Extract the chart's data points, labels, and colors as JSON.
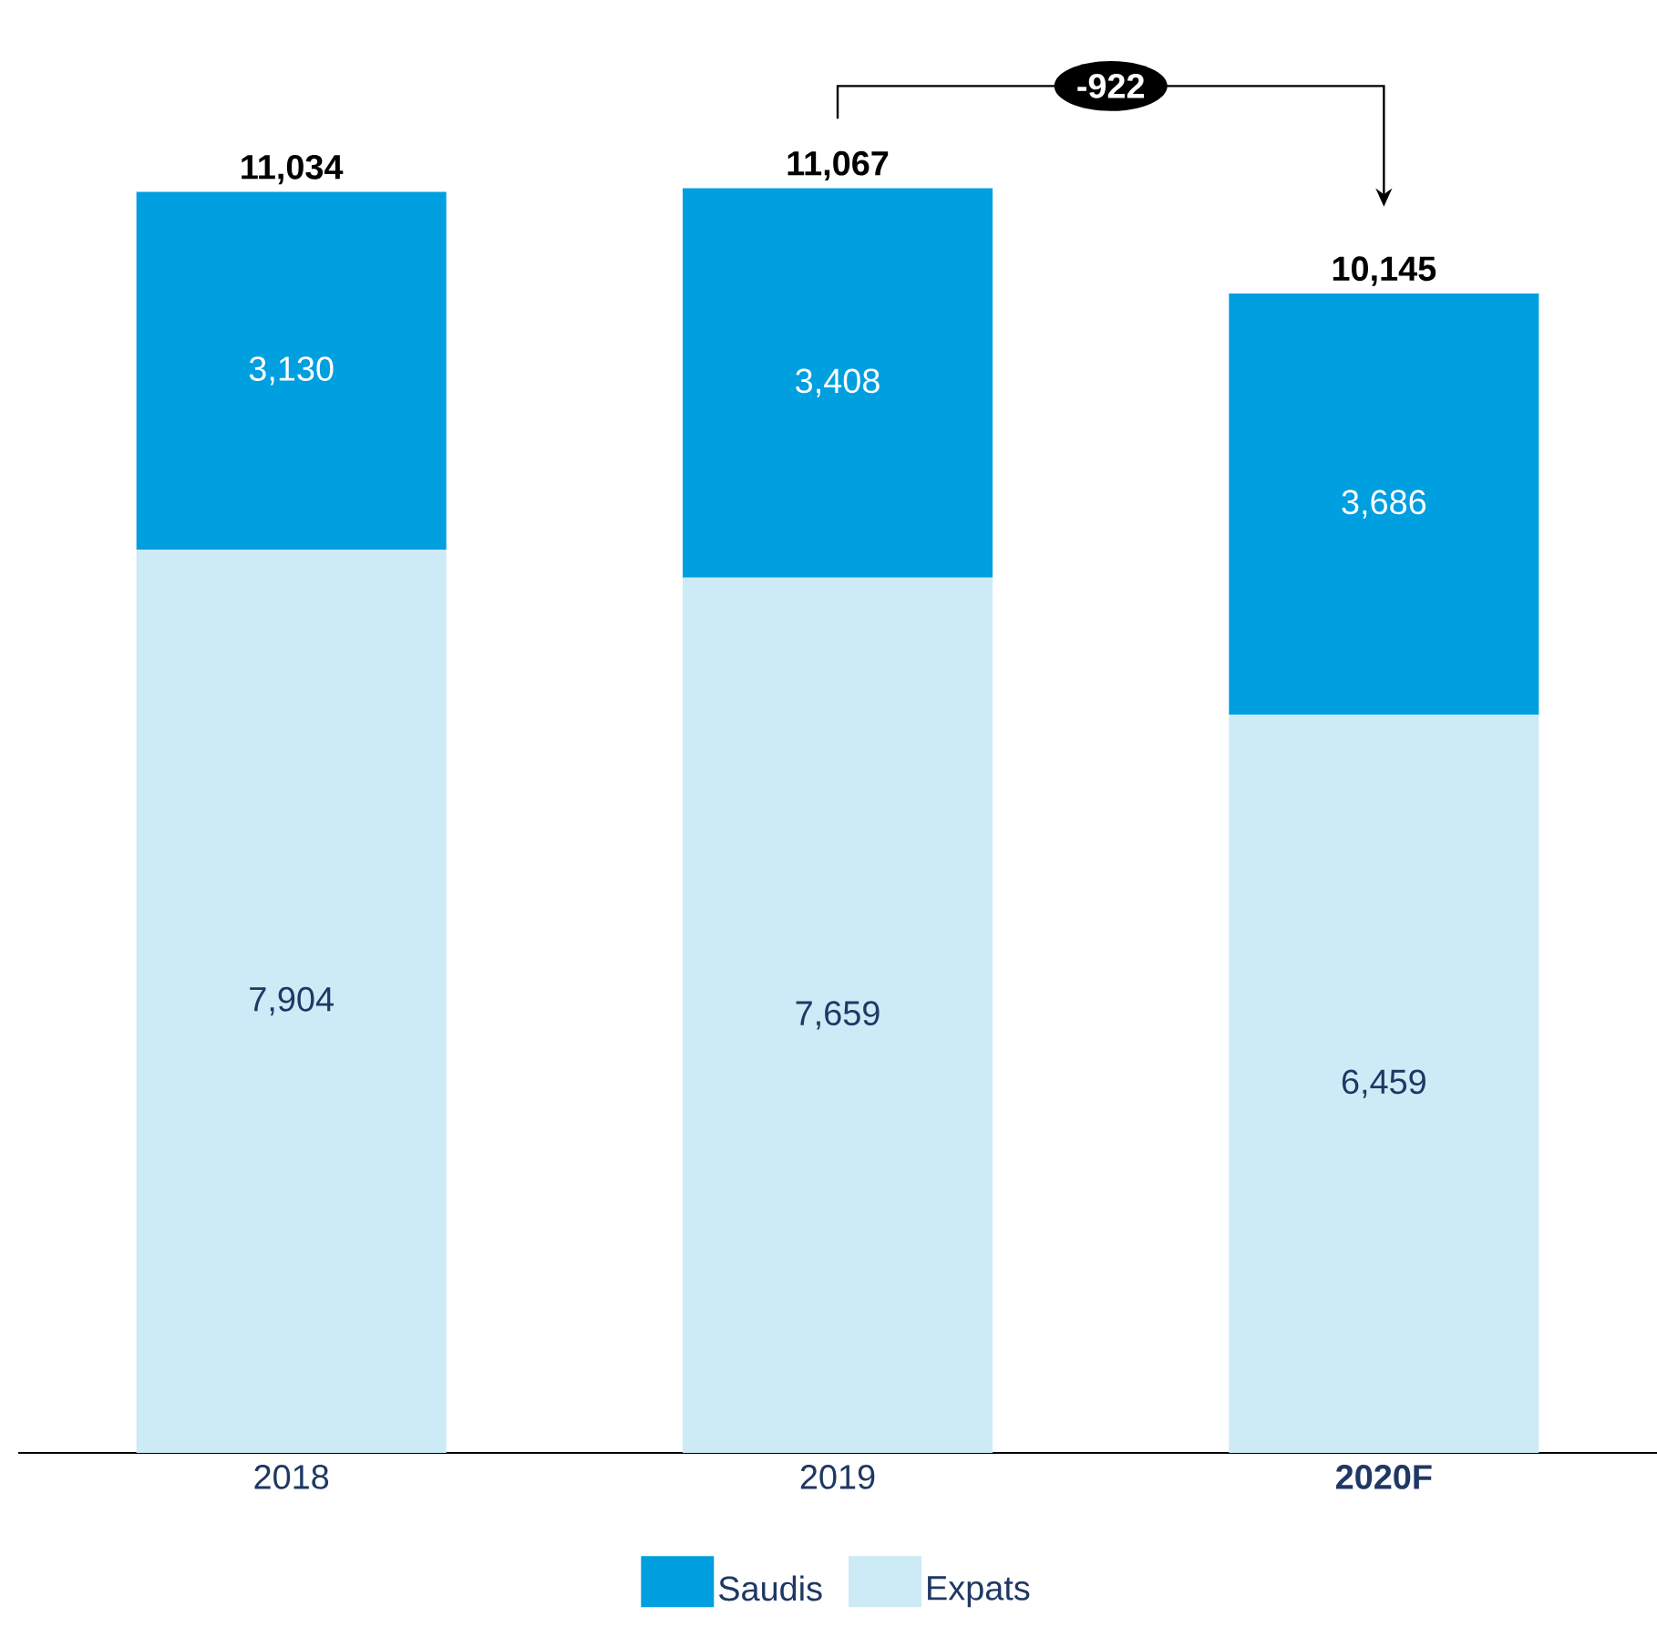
{
  "chart_data": {
    "type": "bar",
    "stacked": true,
    "categories": [
      "2018",
      "2019",
      "2020F"
    ],
    "series": [
      {
        "name": "Expats",
        "color": "#cdeaf7",
        "values": [
          7904,
          7659,
          6459
        ],
        "value_labels": [
          "7,904",
          "7,659",
          "6,459"
        ]
      },
      {
        "name": "Saudis",
        "color": "#009fdf",
        "values": [
          3130,
          3408,
          3686
        ],
        "value_labels": [
          "3,130",
          "3,408",
          "3,686"
        ]
      }
    ],
    "totals": [
      "11,034",
      "11,067",
      "10,145"
    ],
    "annotations": [
      "-922"
    ],
    "legend": "bottom",
    "tick_labels": "x"
  }
}
